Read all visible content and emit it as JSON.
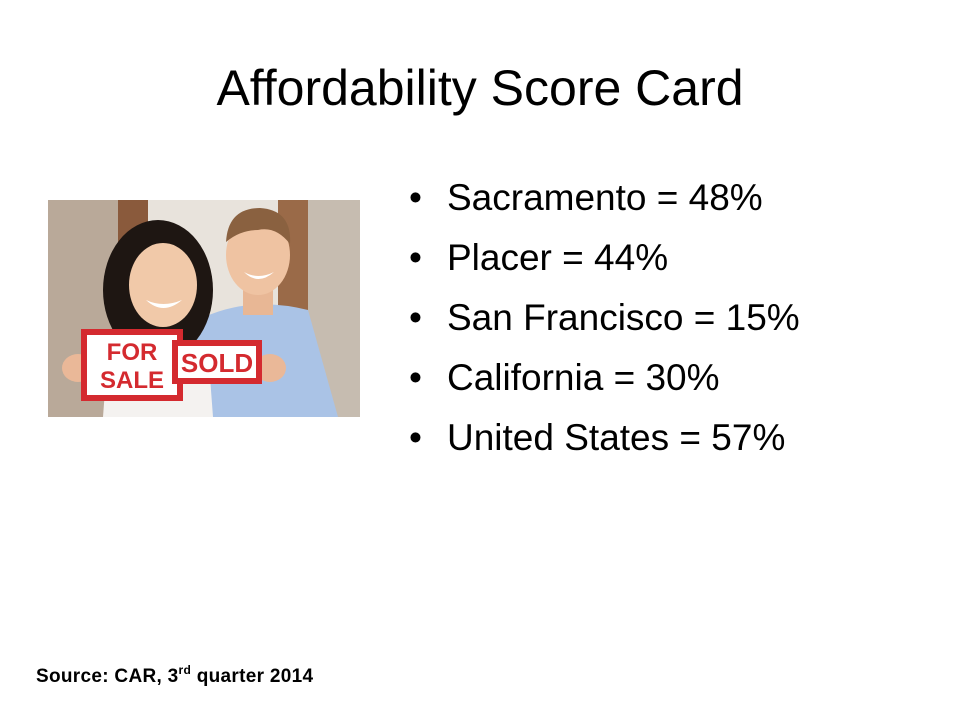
{
  "slide": {
    "title": "Affordability Score Card",
    "bullet_char": "•",
    "bullets": [
      "Sacramento = 48%",
      "Placer = 44%",
      "San Francisco = 15%",
      "California = 30%",
      "United States = 57%"
    ],
    "source": {
      "prefix": "Source: CAR, 3",
      "superscript": "rd",
      "suffix": " quarter 2014"
    },
    "photo": {
      "sign_left": [
        "FOR",
        "SALE"
      ],
      "sign_right": "SOLD",
      "sign_color": "#d42a2f"
    }
  }
}
